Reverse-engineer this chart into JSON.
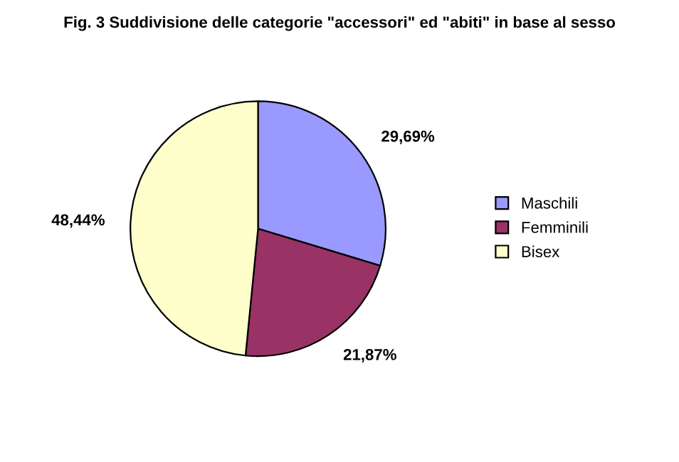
{
  "chart_data": {
    "type": "pie",
    "title": "Fig. 3 Suddivisione delle categorie \"accessori\" ed \"abiti\" in base al sesso",
    "categories": [
      "Maschili",
      "Femminili",
      "Bisex"
    ],
    "values": [
      29.69,
      21.87,
      48.44
    ],
    "value_labels": [
      "29,69%",
      "21,87%",
      "48,44%"
    ],
    "colors": [
      "#9999ff",
      "#993366",
      "#ffffcc"
    ],
    "legend": "right"
  }
}
